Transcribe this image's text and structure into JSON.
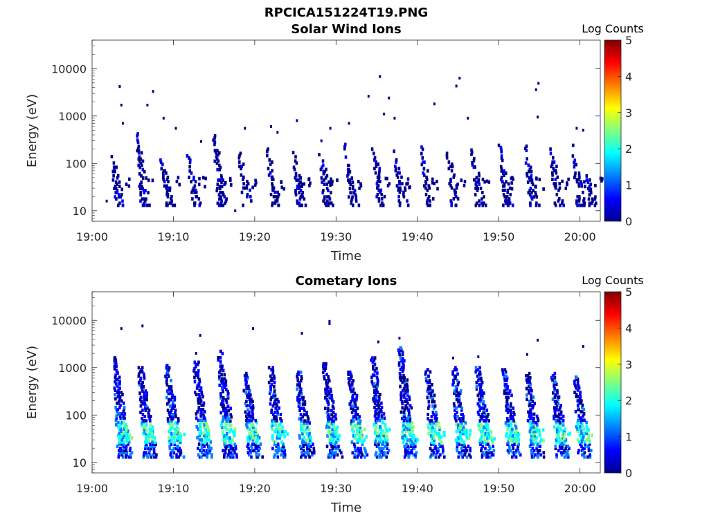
{
  "figure_title": "RPCICA151224T19.PNG",
  "colormap_colors": [
    "#00008f",
    "#0000ff",
    "#0080ff",
    "#00ffff",
    "#80ff80",
    "#ffff00",
    "#ff8000",
    "#ff0000",
    "#800000"
  ],
  "chart_data": [
    {
      "type": "heatmap",
      "title": "Solar Wind Ions",
      "xlabel": "Time",
      "ylabel": "Energy (eV)",
      "x_tick_labels": [
        "19:00",
        "19:10",
        "19:20",
        "19:30",
        "19:40",
        "19:50",
        "20:00"
      ],
      "x_ticks_min": [
        0,
        10,
        20,
        30,
        40,
        50,
        60
      ],
      "xlim_min": [
        0,
        62.5
      ],
      "y_scale": "log",
      "y_tick_values": [
        10,
        100,
        1000,
        10000
      ],
      "y_tick_labels": [
        "10",
        "100",
        "1000",
        "10000"
      ],
      "ylim": [
        6,
        40000
      ],
      "colorbar": {
        "title": "Log Counts",
        "range": [
          0,
          5
        ],
        "tick_labels": [
          "0",
          "1",
          "2",
          "3",
          "4",
          "5"
        ]
      },
      "note_values": "burst = [center time min, max energy eV]",
      "bursts": [
        [
          3.3,
          170
        ],
        [
          6.4,
          420
        ],
        [
          9.4,
          130
        ],
        [
          12.7,
          160
        ],
        [
          15.9,
          420
        ],
        [
          19.0,
          180
        ],
        [
          22.5,
          200
        ],
        [
          25.6,
          230
        ],
        [
          28.9,
          230
        ],
        [
          32.0,
          250
        ],
        [
          35.5,
          200
        ],
        [
          38.1,
          200
        ],
        [
          41.4,
          220
        ],
        [
          44.6,
          180
        ],
        [
          47.6,
          260
        ],
        [
          51.0,
          240
        ],
        [
          54.2,
          230
        ],
        [
          57.3,
          200
        ],
        [
          60.0,
          240
        ],
        [
          61.5,
          60
        ]
      ],
      "points": [
        [
          1.8,
          16
        ],
        [
          3.4,
          4200
        ],
        [
          3.6,
          1700
        ],
        [
          3.8,
          700
        ],
        [
          6.8,
          1700
        ],
        [
          7.5,
          3300
        ],
        [
          8.8,
          900
        ],
        [
          10.3,
          550
        ],
        [
          13.4,
          290
        ],
        [
          17.6,
          10
        ],
        [
          18.8,
          550
        ],
        [
          22.0,
          600
        ],
        [
          22.8,
          450
        ],
        [
          25.2,
          800
        ],
        [
          28.2,
          300
        ],
        [
          29.3,
          550
        ],
        [
          31.6,
          700
        ],
        [
          34.0,
          2600
        ],
        [
          35.4,
          6800
        ],
        [
          35.9,
          1100
        ],
        [
          36.5,
          2400
        ],
        [
          37.2,
          900
        ],
        [
          42.1,
          1800
        ],
        [
          44.8,
          4300
        ],
        [
          45.2,
          6300
        ],
        [
          46.2,
          900
        ],
        [
          54.6,
          3600
        ],
        [
          54.9,
          4900
        ],
        [
          54.8,
          950
        ],
        [
          59.6,
          550
        ],
        [
          60.4,
          500
        ]
      ]
    },
    {
      "type": "heatmap",
      "title": "Cometary Ions",
      "xlabel": "Time",
      "ylabel": "Energy (eV)",
      "x_tick_labels": [
        "19:00",
        "19:10",
        "19:20",
        "19:30",
        "19:40",
        "19:50",
        "20:00"
      ],
      "x_ticks_min": [
        0,
        10,
        20,
        30,
        40,
        50,
        60
      ],
      "xlim_min": [
        0,
        62.5
      ],
      "y_scale": "log",
      "y_tick_values": [
        10,
        100,
        1000,
        10000
      ],
      "y_tick_labels": [
        "10",
        "100",
        "1000",
        "10000"
      ],
      "ylim": [
        6,
        40000
      ],
      "colorbar": {
        "title": "Log Counts",
        "range": [
          0,
          5
        ],
        "tick_labels": [
          "0",
          "1",
          "2",
          "3",
          "4",
          "5"
        ]
      },
      "note_values": "burst = [center time min, max energy eV]",
      "bursts": [
        [
          3.6,
          1600
        ],
        [
          6.7,
          1000
        ],
        [
          10.0,
          1100
        ],
        [
          13.5,
          1300
        ],
        [
          16.5,
          2200
        ],
        [
          19.6,
          750
        ],
        [
          22.7,
          1000
        ],
        [
          26.1,
          800
        ],
        [
          29.4,
          1200
        ],
        [
          32.5,
          800
        ],
        [
          35.3,
          1600
        ],
        [
          38.7,
          2600
        ],
        [
          42.0,
          900
        ],
        [
          45.3,
          1000
        ],
        [
          48.2,
          1000
        ],
        [
          51.5,
          900
        ],
        [
          54.3,
          750
        ],
        [
          57.5,
          750
        ],
        [
          60.2,
          700
        ]
      ],
      "points": [
        [
          3.6,
          6700
        ],
        [
          6.2,
          7600
        ],
        [
          13.3,
          4800
        ],
        [
          12.8,
          2000
        ],
        [
          19.8,
          6700
        ],
        [
          25.8,
          5300
        ],
        [
          29.2,
          9500
        ],
        [
          29.2,
          8500
        ],
        [
          35.2,
          3500
        ],
        [
          37.8,
          4200
        ],
        [
          44.4,
          1600
        ],
        [
          47.5,
          1700
        ],
        [
          54.8,
          3800
        ],
        [
          53.5,
          1900
        ],
        [
          60.4,
          2800
        ]
      ]
    }
  ]
}
